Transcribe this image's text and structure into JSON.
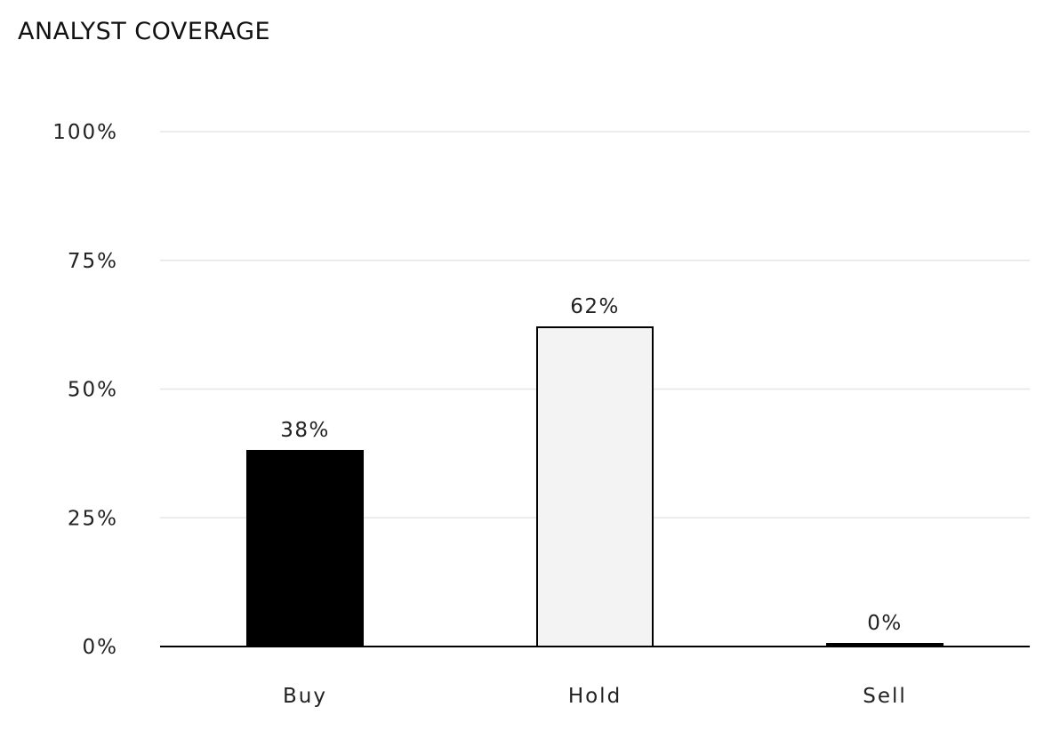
{
  "chart_data": {
    "type": "bar",
    "title": "ANALYST COVERAGE",
    "categories": [
      "Buy",
      "Hold",
      "Sell"
    ],
    "values": [
      38,
      62,
      0
    ],
    "data_labels": [
      "38%",
      "62%",
      "0%"
    ],
    "bar_colors": [
      "#000000",
      "#f3f3f3",
      "#000000"
    ],
    "bar_stroke": "#000000",
    "ylim": [
      0,
      100
    ],
    "yticks": [
      0,
      25,
      50,
      75,
      100
    ],
    "ytick_labels": [
      "0%",
      "25%",
      "50%",
      "75%",
      "100%"
    ],
    "grid": true,
    "grid_color": "#e6e6e6",
    "axis_color": "#000000",
    "xlabel": "",
    "ylabel": ""
  }
}
